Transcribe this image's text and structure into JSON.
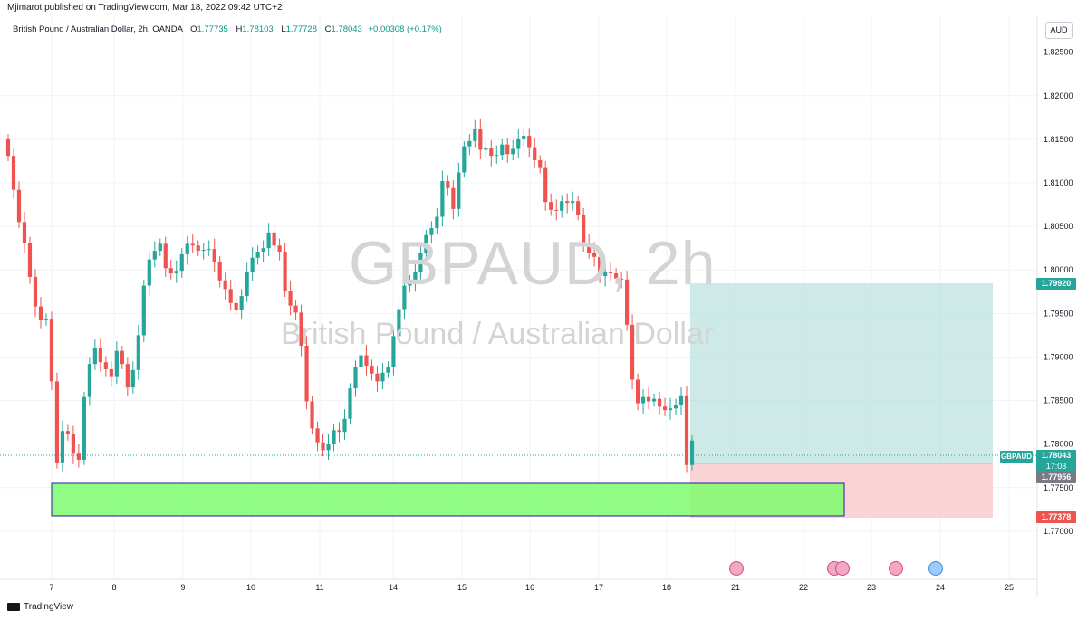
{
  "publisher": "Mjimarot published on TradingView.com, Mar 18, 2022 09:42 UTC+2",
  "legend": {
    "symbol": "British Pound / Australian Dollar, 2h, OANDA",
    "open_label": "O",
    "open": "1.77735",
    "high_label": "H",
    "high": "1.78103",
    "low_label": "L",
    "low": "1.77728",
    "close_label": "C",
    "close": "1.78043",
    "change": "+0.00308 (+0.17%)"
  },
  "watermark": {
    "main": "GBPAUD, 2h",
    "sub": "British Pound / Australian Dollar"
  },
  "currency_button": "AUD",
  "symbol_tag": "GBPAUD",
  "price_tags": {
    "target": "1.79920",
    "current": "1.78043",
    "countdown": "17:03",
    "entry": "1.77956",
    "stop": "1.77378"
  },
  "brand": "TradingView",
  "colors": {
    "up": "#26a69a",
    "down": "#ef5350",
    "profit_zone": "#b2dfdb",
    "loss_zone": "#f8c6c6",
    "support_zone": "#7cfc6f"
  },
  "chart_data": {
    "type": "candlestick",
    "ylim": [
      1.765,
      1.8285
    ],
    "y_ticks": [
      "1.82500",
      "1.82000",
      "1.81500",
      "1.81000",
      "1.80500",
      "1.80000",
      "1.79500",
      "1.79000",
      "1.78500",
      "1.78000",
      "1.77500",
      "1.77000"
    ],
    "x_ticks": [
      "7",
      "8",
      "9",
      "10",
      "11",
      "14",
      "15",
      "16",
      "17",
      "18",
      "21",
      "22",
      "23",
      "24",
      "25"
    ],
    "closes": [
      1.8131,
      1.8092,
      1.8055,
      1.8031,
      1.7992,
      1.7958,
      1.7942,
      1.7944,
      1.7872,
      1.7779,
      1.7815,
      1.7812,
      1.7789,
      1.7782,
      1.7854,
      1.7892,
      1.791,
      1.7894,
      1.7886,
      1.7878,
      1.7907,
      1.7892,
      1.7865,
      1.7885,
      1.7925,
      1.7982,
      1.8012,
      1.8022,
      1.803,
      1.8002,
      1.7996,
      1.7999,
      1.8018,
      1.803,
      1.8028,
      1.8022,
      1.8023,
      1.8024,
      1.8009,
      1.7988,
      1.7978,
      1.7962,
      1.7954,
      1.797,
      1.7998,
      1.8014,
      1.8021,
      1.8025,
      1.8043,
      1.8028,
      1.8021,
      1.7976,
      1.7959,
      1.7951,
      1.7913,
      1.7849,
      1.7818,
      1.7802,
      1.7793,
      1.78,
      1.7816,
      1.7814,
      1.7829,
      1.7864,
      1.7888,
      1.7902,
      1.789,
      1.7881,
      1.7872,
      1.7882,
      1.7889,
      1.7924,
      1.7955,
      1.7982,
      1.7987,
      1.7998,
      1.802,
      1.804,
      1.8048,
      1.8061,
      1.8102,
      1.8094,
      1.807,
      1.8112,
      1.8142,
      1.8148,
      1.8162,
      1.8138,
      1.814,
      1.8131,
      1.8132,
      1.8144,
      1.8133,
      1.8139,
      1.815,
      1.8154,
      1.8141,
      1.8126,
      1.8117,
      1.8078,
      1.8069,
      1.8068,
      1.8079,
      1.8077,
      1.8079,
      1.8063,
      1.8031,
      1.802,
      1.8015,
      1.7993,
      1.7998,
      1.7996,
      1.799,
      1.7989,
      1.7937,
      1.7874,
      1.7847,
      1.7854,
      1.7849,
      1.7852,
      1.7843,
      1.7839,
      1.7841,
      1.7845,
      1.7856,
      1.7776,
      1.7804
    ]
  }
}
